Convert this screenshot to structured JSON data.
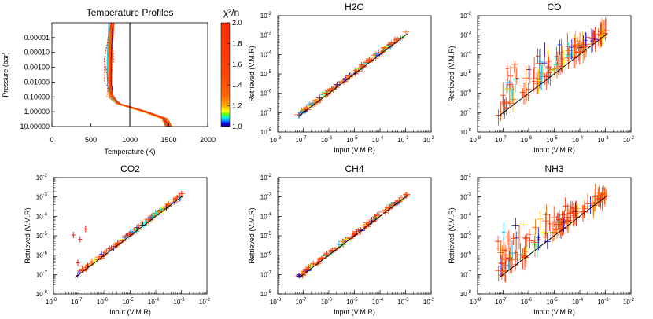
{
  "colors": {
    "axis": "#000000",
    "truth_line": "#000000",
    "colorbar_stops": [
      "#ff2a00",
      "#ff3300",
      "#ff4400",
      "#ff6600",
      "#ffaa00",
      "#ffff00",
      "#66ff00",
      "#00ffcc",
      "#00aaff",
      "#0000ff",
      "#330066"
    ]
  },
  "chart_data": [
    {
      "type": "line",
      "title": "Temperature Profiles",
      "xlabel": "Temperature (K)",
      "ylabel": "Pressure (bar)",
      "xlim": [
        0,
        2000
      ],
      "ylim": [
        10,
        1e-06
      ],
      "y_scale": "log",
      "x_ticks": [
        "0",
        "500",
        "1000",
        "1500",
        "2000"
      ],
      "y_ticks": [
        "0.00001",
        "0.00010",
        "0.00100",
        "0.01000",
        "0.10000",
        "1.00000",
        "10.00000"
      ],
      "reference_line_x": 1000,
      "profile_template": [
        {
          "t": 760,
          "p": 1e-06
        },
        {
          "t": 740,
          "p": 0.0003
        },
        {
          "t": 740,
          "p": 0.01
        },
        {
          "t": 760,
          "p": 0.1
        },
        {
          "t": 860,
          "p": 0.3
        },
        {
          "t": 1200,
          "p": 1.0
        },
        {
          "t": 1450,
          "p": 3.0
        },
        {
          "t": 1500,
          "p": 10.0
        }
      ],
      "n_profiles": 40
    },
    {
      "type": "scatter",
      "title": "H2O",
      "xlabel": "Input (V.M.R)",
      "ylabel": "Retrieved (V.M.R)",
      "x_scale": "log",
      "y_scale": "log",
      "xlim": [
        1e-08,
        0.01
      ],
      "ylim": [
        1e-08,
        0.01
      ],
      "tick_labels": [
        "10-8",
        "10-7",
        "10-6",
        "10-5",
        "10-4",
        "10-3",
        "10-2"
      ],
      "spread": "low"
    },
    {
      "type": "scatter",
      "title": "CO",
      "xlabel": "Input (V.M.R)",
      "ylabel": "Retrieved (V.M.R)",
      "x_scale": "log",
      "y_scale": "log",
      "xlim": [
        1e-08,
        0.01
      ],
      "ylim": [
        1e-08,
        0.01
      ],
      "tick_labels": [
        "10-8",
        "10-7",
        "10-6",
        "10-5",
        "10-4",
        "10-3",
        "10-2"
      ],
      "spread": "high"
    },
    {
      "type": "scatter",
      "title": "CO2",
      "xlabel": "Input (V.M.R)",
      "ylabel": "Retrieved (V.M.R)",
      "x_scale": "log",
      "y_scale": "log",
      "xlim": [
        1e-08,
        0.01
      ],
      "ylim": [
        1e-08,
        0.01
      ],
      "tick_labels": [
        "10-8",
        "10-7",
        "10-6",
        "10-5",
        "10-4",
        "10-3",
        "10-2"
      ],
      "spread": "low",
      "outliers": [
        [
          6e-08,
          1.1e-05
        ],
        [
          1.8e-07,
          2.2e-05
        ],
        [
          1.1e-07,
          6.5e-06
        ],
        [
          9e-08,
          4e-07
        ]
      ]
    },
    {
      "type": "scatter",
      "title": "CH4",
      "xlabel": "Input (V.M.R)",
      "ylabel": "Retrieved (V.M.R)",
      "x_scale": "log",
      "y_scale": "log",
      "xlim": [
        1e-08,
        0.01
      ],
      "ylim": [
        1e-08,
        0.01
      ],
      "tick_labels": [
        "10-8",
        "10-7",
        "10-6",
        "10-5",
        "10-4",
        "10-3",
        "10-2"
      ],
      "spread": "low"
    },
    {
      "type": "scatter",
      "title": "NH3",
      "xlabel": "Input (V.M.R)",
      "ylabel": "Retrieved (V.M.R)",
      "x_scale": "log",
      "y_scale": "log",
      "xlim": [
        1e-08,
        0.01
      ],
      "ylim": [
        1e-08,
        0.01
      ],
      "tick_labels": [
        "10-8",
        "10-7",
        "10-6",
        "10-5",
        "10-4",
        "10-3",
        "10-2"
      ],
      "spread": "high"
    }
  ],
  "colorbar": {
    "title": "χ²/n",
    "ticks": [
      "1.0",
      "1.2",
      "1.4",
      "1.6",
      "1.8",
      "2.0"
    ],
    "range": [
      1.0,
      2.0
    ]
  }
}
